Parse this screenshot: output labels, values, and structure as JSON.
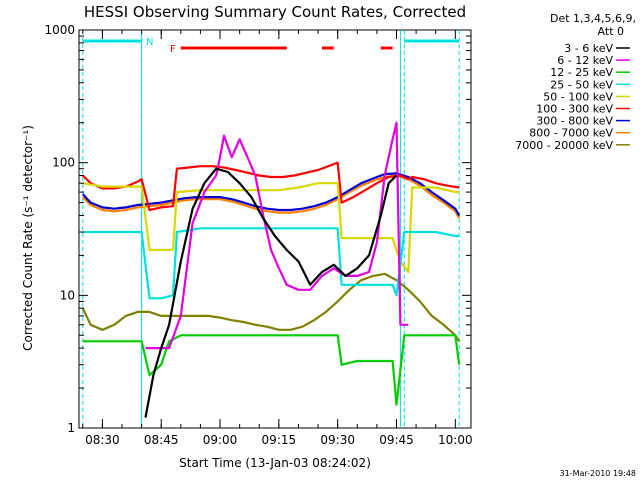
{
  "chart_data": {
    "type": "line",
    "title": "HESSI Observing Summary Count Rates, Corrected",
    "ylabel": "Corrected Count Rate (s⁻¹ detector⁻¹)",
    "xlabel": "Start Time (13-Jan-03 08:24:02)",
    "y_scale": "log",
    "ylim": [
      1,
      1000
    ],
    "xlim": [
      "08:24:02",
      "10:04:00"
    ],
    "x_ticks": [
      "08:30",
      "08:45",
      "09:00",
      "09:15",
      "09:30",
      "09:45",
      "10:00"
    ],
    "y_ticks": [
      "1",
      "10",
      "100",
      "1000"
    ],
    "grid": false,
    "legend_position": "right",
    "legend_header": [
      "Det 1,3,4,5,6,9,",
      "Att 0"
    ],
    "footer_date": "31-Mar-2010 19:48",
    "flag_labels": {
      "night": "N",
      "flare": "F"
    },
    "night_intervals": [
      {
        "start": "08:25",
        "end": "08:40"
      },
      {
        "start": "09:47",
        "end": "10:01"
      }
    ],
    "flare_intervals": [
      {
        "start": "08:50",
        "end": "09:17"
      },
      {
        "start": "09:26",
        "end": "09:29"
      },
      {
        "start": "09:41",
        "end": "09:44"
      }
    ],
    "data_gaps": [
      {
        "start": "08:40",
        "end": "08:41"
      },
      {
        "start": "09:46",
        "end": "09:47"
      }
    ],
    "series": [
      {
        "name": "3 - 6 keV",
        "color": "#000000",
        "points": [
          [
            "08:41",
            1.2
          ],
          [
            "08:43",
            2.5
          ],
          [
            "08:45",
            4
          ],
          [
            "08:47",
            6
          ],
          [
            "08:50",
            18
          ],
          [
            "08:53",
            45
          ],
          [
            "08:56",
            70
          ],
          [
            "08:59",
            90
          ],
          [
            "09:02",
            85
          ],
          [
            "09:05",
            70
          ],
          [
            "09:08",
            55
          ],
          [
            "09:11",
            38
          ],
          [
            "09:14",
            28
          ],
          [
            "09:17",
            22
          ],
          [
            "09:20",
            18
          ],
          [
            "09:23",
            12
          ],
          [
            "09:26",
            15
          ],
          [
            "09:29",
            17
          ],
          [
            "09:32",
            14
          ],
          [
            "09:35",
            16
          ],
          [
            "09:38",
            20
          ],
          [
            "09:41",
            40
          ],
          [
            "09:43",
            70
          ],
          [
            "09:45",
            80
          ]
        ]
      },
      {
        "name": "6 - 12 keV",
        "color": "#e000e0",
        "points": [
          [
            "08:41",
            4
          ],
          [
            "08:44",
            4
          ],
          [
            "08:47",
            4
          ],
          [
            "08:50",
            7
          ],
          [
            "08:53",
            35
          ],
          [
            "08:56",
            60
          ],
          [
            "08:59",
            80
          ],
          [
            "09:00",
            110
          ],
          [
            "09:01",
            160
          ],
          [
            "09:03",
            110
          ],
          [
            "09:05",
            150
          ],
          [
            "09:07",
            110
          ],
          [
            "09:09",
            80
          ],
          [
            "09:11",
            40
          ],
          [
            "09:13",
            22
          ],
          [
            "09:15",
            16
          ],
          [
            "09:17",
            12
          ],
          [
            "09:20",
            11
          ],
          [
            "09:23",
            11
          ],
          [
            "09:26",
            14
          ],
          [
            "09:29",
            16
          ],
          [
            "09:32",
            14
          ],
          [
            "09:35",
            14
          ],
          [
            "09:38",
            15
          ],
          [
            "09:40",
            25
          ],
          [
            "09:42",
            80
          ],
          [
            "09:44",
            150
          ],
          [
            "09:45",
            200
          ],
          [
            "09:46",
            6
          ],
          [
            "09:48",
            6
          ]
        ]
      },
      {
        "name": "12 - 25 keV",
        "color": "#00cc00",
        "points": [
          [
            "08:25",
            4.5
          ],
          [
            "08:30",
            4.5
          ],
          [
            "08:35",
            4.5
          ],
          [
            "08:40",
            4.5
          ],
          [
            "08:42",
            2.5
          ],
          [
            "08:45",
            3
          ],
          [
            "08:47",
            4.5
          ],
          [
            "08:50",
            5
          ],
          [
            "08:55",
            5
          ],
          [
            "09:00",
            5
          ],
          [
            "09:05",
            5
          ],
          [
            "09:10",
            5
          ],
          [
            "09:15",
            5
          ],
          [
            "09:20",
            5
          ],
          [
            "09:25",
            5
          ],
          [
            "09:30",
            5
          ],
          [
            "09:31",
            3
          ],
          [
            "09:35",
            3.2
          ],
          [
            "09:40",
            3.2
          ],
          [
            "09:44",
            3.2
          ],
          [
            "09:45",
            1.5
          ],
          [
            "09:47",
            5
          ],
          [
            "09:50",
            5
          ],
          [
            "09:55",
            5
          ],
          [
            "10:00",
            5
          ],
          [
            "10:01",
            3
          ]
        ]
      },
      {
        "name": "25 - 50 keV",
        "color": "#00e0e0",
        "points": [
          [
            "08:25",
            30
          ],
          [
            "08:30",
            30
          ],
          [
            "08:35",
            30
          ],
          [
            "08:40",
            30
          ],
          [
            "08:42",
            9.5
          ],
          [
            "08:45",
            9.5
          ],
          [
            "08:48",
            10
          ],
          [
            "08:49",
            30
          ],
          [
            "08:55",
            32
          ],
          [
            "09:00",
            32
          ],
          [
            "09:05",
            32
          ],
          [
            "09:10",
            32
          ],
          [
            "09:15",
            32
          ],
          [
            "09:20",
            32
          ],
          [
            "09:25",
            32
          ],
          [
            "09:30",
            32
          ],
          [
            "09:31",
            12
          ],
          [
            "09:35",
            12
          ],
          [
            "09:40",
            12
          ],
          [
            "09:44",
            12
          ],
          [
            "09:45",
            10
          ],
          [
            "09:47",
            30
          ],
          [
            "09:50",
            30
          ],
          [
            "09:55",
            30
          ],
          [
            "10:00",
            28
          ],
          [
            "10:01",
            28
          ]
        ]
      },
      {
        "name": "50 - 100 keV",
        "color": "#d8d800",
        "points": [
          [
            "08:25",
            70
          ],
          [
            "08:30",
            66
          ],
          [
            "08:35",
            66
          ],
          [
            "08:40",
            66
          ],
          [
            "08:42",
            22
          ],
          [
            "08:45",
            22
          ],
          [
            "08:48",
            22
          ],
          [
            "08:49",
            60
          ],
          [
            "08:55",
            62
          ],
          [
            "09:00",
            62
          ],
          [
            "09:05",
            62
          ],
          [
            "09:10",
            62
          ],
          [
            "09:15",
            62
          ],
          [
            "09:20",
            65
          ],
          [
            "09:25",
            70
          ],
          [
            "09:30",
            70
          ],
          [
            "09:31",
            27
          ],
          [
            "09:35",
            27
          ],
          [
            "09:40",
            27
          ],
          [
            "09:44",
            27
          ],
          [
            "09:46",
            18
          ],
          [
            "09:48",
            15
          ],
          [
            "09:49",
            65
          ],
          [
            "09:52",
            65
          ],
          [
            "09:55",
            65
          ],
          [
            "10:00",
            60
          ],
          [
            "10:01",
            60
          ]
        ]
      },
      {
        "name": "100 - 300 keV",
        "color": "#ff0000",
        "points": [
          [
            "08:25",
            80
          ],
          [
            "08:27",
            70
          ],
          [
            "08:30",
            64
          ],
          [
            "08:33",
            64
          ],
          [
            "08:36",
            66
          ],
          [
            "08:39",
            72
          ],
          [
            "08:40",
            75
          ],
          [
            "08:42",
            44
          ],
          [
            "08:45",
            46
          ],
          [
            "08:48",
            47
          ],
          [
            "08:49",
            90
          ],
          [
            "08:52",
            92
          ],
          [
            "08:55",
            94
          ],
          [
            "08:58",
            94
          ],
          [
            "09:01",
            92
          ],
          [
            "09:04",
            88
          ],
          [
            "09:07",
            84
          ],
          [
            "09:10",
            80
          ],
          [
            "09:13",
            78
          ],
          [
            "09:16",
            78
          ],
          [
            "09:19",
            80
          ],
          [
            "09:22",
            84
          ],
          [
            "09:25",
            88
          ],
          [
            "09:28",
            95
          ],
          [
            "09:30",
            100
          ],
          [
            "09:31",
            50
          ],
          [
            "09:34",
            55
          ],
          [
            "09:37",
            62
          ],
          [
            "09:40",
            70
          ],
          [
            "09:43",
            78
          ],
          [
            "09:46",
            80
          ],
          [
            "09:48",
            75
          ],
          [
            "09:49",
            78
          ],
          [
            "09:52",
            75
          ],
          [
            "09:55",
            70
          ],
          [
            "09:58",
            67
          ],
          [
            "10:01",
            65
          ]
        ]
      },
      {
        "name": "300 - 800 keV",
        "color": "#0000d0",
        "points": [
          [
            "08:25",
            58
          ],
          [
            "08:27",
            50
          ],
          [
            "08:30",
            46
          ],
          [
            "08:33",
            45
          ],
          [
            "08:36",
            46
          ],
          [
            "08:39",
            48
          ],
          [
            "08:42",
            49
          ],
          [
            "08:45",
            50
          ],
          [
            "08:48",
            52
          ],
          [
            "08:51",
            54
          ],
          [
            "08:54",
            55
          ],
          [
            "08:57",
            55
          ],
          [
            "09:00",
            55
          ],
          [
            "09:03",
            53
          ],
          [
            "09:06",
            50
          ],
          [
            "09:09",
            47
          ],
          [
            "09:12",
            45
          ],
          [
            "09:15",
            44
          ],
          [
            "09:18",
            44
          ],
          [
            "09:21",
            45
          ],
          [
            "09:24",
            47
          ],
          [
            "09:27",
            50
          ],
          [
            "09:30",
            55
          ],
          [
            "09:33",
            62
          ],
          [
            "09:36",
            70
          ],
          [
            "09:39",
            76
          ],
          [
            "09:42",
            82
          ],
          [
            "09:45",
            83
          ],
          [
            "09:48",
            78
          ],
          [
            "09:51",
            70
          ],
          [
            "09:54",
            60
          ],
          [
            "09:57",
            52
          ],
          [
            "10:00",
            45
          ],
          [
            "10:01",
            40
          ]
        ]
      },
      {
        "name": "800 - 7000 keV",
        "color": "#ff8000",
        "points": [
          [
            "08:25",
            55
          ],
          [
            "08:27",
            48
          ],
          [
            "08:30",
            44
          ],
          [
            "08:33",
            43
          ],
          [
            "08:36",
            44
          ],
          [
            "08:39",
            46
          ],
          [
            "08:42",
            47
          ],
          [
            "08:45",
            48
          ],
          [
            "08:48",
            50
          ],
          [
            "08:51",
            52
          ],
          [
            "08:54",
            53
          ],
          [
            "08:57",
            53
          ],
          [
            "09:00",
            53
          ],
          [
            "09:03",
            51
          ],
          [
            "09:06",
            48
          ],
          [
            "09:09",
            45
          ],
          [
            "09:12",
            43
          ],
          [
            "09:15",
            42
          ],
          [
            "09:18",
            42
          ],
          [
            "09:21",
            43
          ],
          [
            "09:24",
            45
          ],
          [
            "09:27",
            48
          ],
          [
            "09:30",
            53
          ],
          [
            "09:33",
            60
          ],
          [
            "09:36",
            67
          ],
          [
            "09:39",
            73
          ],
          [
            "09:42",
            78
          ],
          [
            "09:45",
            80
          ],
          [
            "09:48",
            75
          ],
          [
            "09:51",
            67
          ],
          [
            "09:54",
            57
          ],
          [
            "09:57",
            50
          ],
          [
            "10:00",
            43
          ],
          [
            "10:01",
            38
          ]
        ]
      },
      {
        "name": "7000 - 20000 keV",
        "color": "#808000",
        "points": [
          [
            "08:25",
            8
          ],
          [
            "08:27",
            6
          ],
          [
            "08:30",
            5.5
          ],
          [
            "08:33",
            6
          ],
          [
            "08:36",
            7
          ],
          [
            "08:39",
            7.5
          ],
          [
            "08:42",
            7.5
          ],
          [
            "08:45",
            7
          ],
          [
            "08:48",
            7
          ],
          [
            "08:51",
            7
          ],
          [
            "08:54",
            7
          ],
          [
            "08:57",
            7
          ],
          [
            "09:00",
            6.8
          ],
          [
            "09:03",
            6.5
          ],
          [
            "09:06",
            6.3
          ],
          [
            "09:09",
            6
          ],
          [
            "09:12",
            5.8
          ],
          [
            "09:15",
            5.5
          ],
          [
            "09:18",
            5.5
          ],
          [
            "09:21",
            5.8
          ],
          [
            "09:24",
            6.5
          ],
          [
            "09:27",
            7.5
          ],
          [
            "09:30",
            9
          ],
          [
            "09:33",
            11
          ],
          [
            "09:36",
            13
          ],
          [
            "09:39",
            14
          ],
          [
            "09:42",
            14.5
          ],
          [
            "09:45",
            13
          ],
          [
            "09:48",
            11
          ],
          [
            "09:51",
            9
          ],
          [
            "09:54",
            7
          ],
          [
            "09:57",
            6
          ],
          [
            "10:00",
            5
          ],
          [
            "10:01",
            4.5
          ]
        ]
      }
    ]
  }
}
